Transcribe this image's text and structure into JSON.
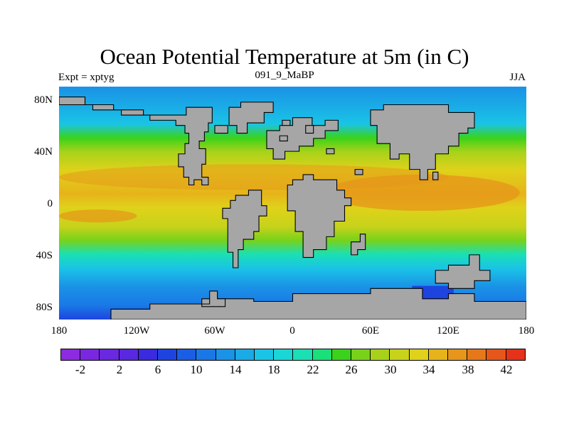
{
  "title": "Ocean Potential Temperature at 5m (in C)",
  "subtitle_left": "Expt = xptyg",
  "subtitle_center": "091_9_MaBP",
  "subtitle_right": "JJA",
  "map": {
    "projection": "cylindrical-equidistant",
    "lon_range": [
      -180,
      180
    ],
    "lat_range": [
      -90,
      90
    ],
    "land_color": "#a6a6a6",
    "coastline_color": "#000000",
    "y_ticks": [
      "80N",
      "40N",
      "0",
      "40S",
      "80S"
    ],
    "x_ticks": [
      "180",
      "120W",
      "60W",
      "0",
      "60E",
      "120E",
      "180"
    ]
  },
  "colorbar": {
    "colors": [
      "#8c2be0",
      "#7a28e0",
      "#6a28e0",
      "#5a28e0",
      "#3a2ae0",
      "#1e44e0",
      "#1a5ee6",
      "#1a78e6",
      "#1a92e6",
      "#1aaae6",
      "#1ac4e6",
      "#1ad6d6",
      "#1ae0b4",
      "#1ae07a",
      "#3ad21a",
      "#78d21a",
      "#a8d21a",
      "#c8d21a",
      "#e0d21a",
      "#e6b41a",
      "#e6961a",
      "#e6781a",
      "#e6561a",
      "#e6321a"
    ],
    "labels": [
      "-2",
      "2",
      "6",
      "10",
      "14",
      "18",
      "22",
      "26",
      "30",
      "34",
      "38",
      "42"
    ]
  }
}
